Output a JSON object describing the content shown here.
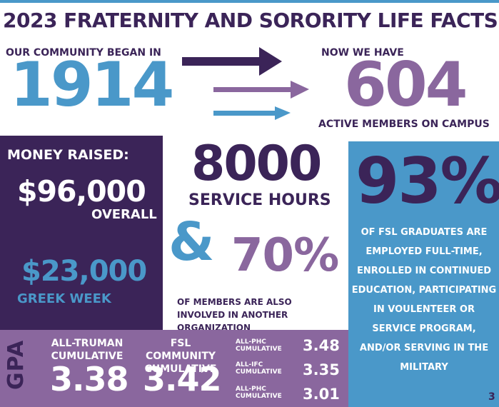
{
  "title": "2023 FRATERNITY AND SORORITY LIFE FACTS",
  "founded": {
    "label": "OUR COMMUNITY BEGAN IN",
    "year": "1914"
  },
  "members": {
    "label_top": "NOW WE HAVE",
    "count": "604",
    "label_bottom": "ACTIVE MEMBERS ON CAMPUS"
  },
  "money": {
    "heading": "MONEY RAISED:",
    "overall_amount": "$96,000",
    "overall_label": "OVERALL",
    "greek_week_amount": "$23,000",
    "greek_week_label": "GREEK WEEK"
  },
  "service": {
    "hours": "8000",
    "label": "SERVICE HOURS",
    "ampersand": "&",
    "involved_percent": "70%",
    "involved_label": "OF MEMBERS ARE ALSO INVOLVED IN ANOTHER ORGANIZATION"
  },
  "graduates": {
    "percent": "93%",
    "label": "OF FSL GRADUATES ARE EMPLOYED FULL-TIME, ENROLLED IN CONTINUED EDUCATION, PARTICIPATING IN VOULENTEER OR SERVICE PROGRAM, AND/OR SERVING IN THE MILITARY"
  },
  "gpa": {
    "side_label": "GPA",
    "truman_label": "ALL-TRUMAN CUMULATIVE",
    "truman_value": "3.38",
    "fsl_label": "FSL COMMUNITY CUMULATIVE",
    "fsl_value": "3.42",
    "rows": [
      {
        "label_1": "ALL-PHC",
        "label_2": "CUMULATIVE",
        "value": "3.48"
      },
      {
        "label_1": "ALL-IFC",
        "label_2": "CUMULATIVE",
        "value": "3.35"
      },
      {
        "label_1": "ALL-PHC",
        "label_2": "CUMULATIVE",
        "value": "3.01"
      }
    ]
  },
  "page_number": "3",
  "colors": {
    "dark_purple": "#3b2458",
    "light_purple": "#8a679e",
    "blue": "#4a98c9"
  }
}
